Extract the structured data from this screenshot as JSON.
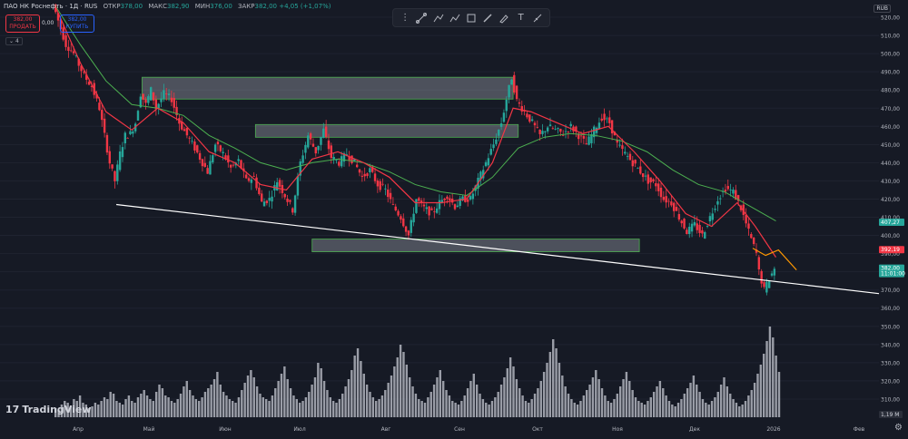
{
  "header": {
    "symbol": "ПАО НК Роснефть · 1Д · RUS",
    "open_label": "ОТКР",
    "open_value": "378,00",
    "high_label": "МАКС",
    "high_value": "382,90",
    "low_label": "МИН",
    "low_value": "376,00",
    "close_label": "ЗАКР",
    "close_value": "382,00",
    "change": "+4,05 (+1,07%)"
  },
  "trade": {
    "sell_price": "382,00",
    "sell_label": "ПРОДАТЬ",
    "spread": "0,00",
    "buy_price": "382,00",
    "buy_label": "КУПИТЬ",
    "indicator_count": "4"
  },
  "toolbar": {
    "icons": [
      "grip-icon",
      "trendline-icon",
      "fib-icon",
      "path-icon",
      "rectangle-icon",
      "brush-icon",
      "pen-icon",
      "text-icon",
      "measure-icon"
    ]
  },
  "currency": "RUB",
  "branding": {
    "logo_text": "TradingView"
  },
  "colors": {
    "bg": "#161a25",
    "up": "#26a69a",
    "down": "#f23645",
    "ema_fast": "#f23645",
    "ema_slow": "#4caf50",
    "zone_fill": "rgba(180,185,195,0.35)",
    "zone_border": "#4caf50",
    "trendline": "#ffffff",
    "projection": "#ff9800",
    "volume": "#b2b5be"
  },
  "chart_data": {
    "type": "candlestick",
    "title": "ПАО НК Роснефть · 1Д · RUS",
    "yaxis": {
      "min": 300,
      "max": 527,
      "ticks": [
        520,
        510,
        500,
        490,
        480,
        470,
        460,
        450,
        440,
        430,
        420,
        410,
        400,
        390,
        380,
        370,
        360,
        350,
        340,
        330,
        320,
        310
      ],
      "tick_labels": [
        "520,00",
        "510,00",
        "500,00",
        "490,00",
        "480,00",
        "470,00",
        "460,00",
        "450,00",
        "440,00",
        "430,00",
        "420,00",
        "410,00",
        "400,00",
        "390,00",
        "380,00",
        "370,00",
        "360,00",
        "350,00",
        "340,00",
        "330,00",
        "320,00",
        "310,00"
      ]
    },
    "xaxis": {
      "months": [
        "Апр",
        "Май",
        "Июн",
        "Июл",
        "Авг",
        "Сен",
        "Окт",
        "Ноя",
        "Дек",
        "2026",
        "Фев"
      ]
    },
    "price_labels": [
      {
        "value": 407.27,
        "text": "407,27",
        "color": "#26a69a"
      },
      {
        "value": 392.19,
        "text": "392,19",
        "color": "#f23645"
      },
      {
        "value": 382.0,
        "text": "382,00",
        "sub": "11:01:00",
        "color": "#26a69a"
      }
    ],
    "volume_label": "1,19 M",
    "price_path": [
      [
        0,
        527
      ],
      [
        5,
        505
      ],
      [
        8,
        500
      ],
      [
        12,
        488
      ],
      [
        15,
        482
      ],
      [
        18,
        470
      ],
      [
        20,
        455
      ],
      [
        22,
        440
      ],
      [
        24,
        430
      ],
      [
        26,
        445
      ],
      [
        28,
        455
      ],
      [
        30,
        456
      ],
      [
        32,
        462
      ],
      [
        34,
        478
      ],
      [
        36,
        472
      ],
      [
        38,
        480
      ],
      [
        40,
        470
      ],
      [
        43,
        478
      ],
      [
        46,
        475
      ],
      [
        49,
        462
      ],
      [
        52,
        455
      ],
      [
        55,
        448
      ],
      [
        58,
        440
      ],
      [
        60,
        435
      ],
      [
        63,
        450
      ],
      [
        66,
        445
      ],
      [
        69,
        437
      ],
      [
        72,
        441
      ],
      [
        75,
        430
      ],
      [
        78,
        432
      ],
      [
        81,
        418
      ],
      [
        84,
        420
      ],
      [
        87,
        430
      ],
      [
        90,
        422
      ],
      [
        93,
        414
      ],
      [
        96,
        440
      ],
      [
        99,
        455
      ],
      [
        102,
        446
      ],
      [
        105,
        458
      ],
      [
        108,
        443
      ],
      [
        111,
        440
      ],
      [
        114,
        445
      ],
      [
        117,
        440
      ],
      [
        120,
        432
      ],
      [
        123,
        436
      ],
      [
        126,
        428
      ],
      [
        129,
        425
      ],
      [
        132,
        416
      ],
      [
        135,
        410
      ],
      [
        138,
        400
      ],
      [
        141,
        420
      ],
      [
        144,
        415
      ],
      [
        147,
        412
      ],
      [
        150,
        418
      ],
      [
        153,
        422
      ],
      [
        156,
        416
      ],
      [
        159,
        420
      ],
      [
        162,
        420
      ],
      [
        165,
        430
      ],
      [
        168,
        440
      ],
      [
        171,
        450
      ],
      [
        174,
        462
      ],
      [
        176,
        475
      ],
      [
        178,
        487
      ],
      [
        180,
        474
      ],
      [
        183,
        468
      ],
      [
        186,
        462
      ],
      [
        189,
        455
      ],
      [
        192,
        460
      ],
      [
        195,
        458
      ],
      [
        198,
        456
      ],
      [
        201,
        460
      ],
      [
        204,
        455
      ],
      [
        207,
        450
      ],
      [
        210,
        458
      ],
      [
        213,
        465
      ],
      [
        216,
        462
      ],
      [
        219,
        450
      ],
      [
        222,
        445
      ],
      [
        225,
        440
      ],
      [
        228,
        435
      ],
      [
        231,
        430
      ],
      [
        234,
        428
      ],
      [
        237,
        420
      ],
      [
        240,
        418
      ],
      [
        243,
        410
      ],
      [
        246,
        402
      ],
      [
        249,
        406
      ],
      [
        252,
        400
      ],
      [
        255,
        410
      ],
      [
        258,
        420
      ],
      [
        261,
        426
      ],
      [
        264,
        424
      ],
      [
        267,
        415
      ],
      [
        270,
        402
      ],
      [
        273,
        390
      ],
      [
        274,
        380
      ],
      [
        276,
        370
      ],
      [
        278,
        376
      ],
      [
        280,
        382
      ]
    ],
    "ema_fast": [
      [
        0,
        527
      ],
      [
        10,
        495
      ],
      [
        20,
        468
      ],
      [
        30,
        458
      ],
      [
        40,
        470
      ],
      [
        50,
        462
      ],
      [
        60,
        446
      ],
      [
        70,
        440
      ],
      [
        80,
        428
      ],
      [
        90,
        425
      ],
      [
        100,
        442
      ],
      [
        110,
        446
      ],
      [
        120,
        440
      ],
      [
        130,
        432
      ],
      [
        140,
        418
      ],
      [
        150,
        418
      ],
      [
        160,
        420
      ],
      [
        170,
        440
      ],
      [
        178,
        470
      ],
      [
        185,
        468
      ],
      [
        195,
        462
      ],
      [
        205,
        456
      ],
      [
        215,
        460
      ],
      [
        225,
        446
      ],
      [
        235,
        430
      ],
      [
        245,
        412
      ],
      [
        255,
        405
      ],
      [
        265,
        418
      ],
      [
        272,
        405
      ],
      [
        280,
        388
      ]
    ],
    "ema_slow": [
      [
        0,
        527
      ],
      [
        10,
        505
      ],
      [
        20,
        485
      ],
      [
        30,
        472
      ],
      [
        40,
        470
      ],
      [
        50,
        466
      ],
      [
        60,
        455
      ],
      [
        70,
        448
      ],
      [
        80,
        440
      ],
      [
        90,
        436
      ],
      [
        100,
        440
      ],
      [
        110,
        442
      ],
      [
        120,
        440
      ],
      [
        130,
        435
      ],
      [
        140,
        428
      ],
      [
        150,
        424
      ],
      [
        160,
        422
      ],
      [
        170,
        432
      ],
      [
        180,
        448
      ],
      [
        190,
        454
      ],
      [
        200,
        456
      ],
      [
        210,
        455
      ],
      [
        220,
        452
      ],
      [
        230,
        446
      ],
      [
        240,
        436
      ],
      [
        250,
        428
      ],
      [
        260,
        424
      ],
      [
        270,
        416
      ],
      [
        280,
        408
      ]
    ],
    "zones": [
      {
        "x0": 34,
        "x1": 178,
        "y0": 475,
        "y1": 487
      },
      {
        "x0": 78,
        "x1": 180,
        "y0": 454,
        "y1": 461
      },
      {
        "x0": 100,
        "x1": 227,
        "y0": 391,
        "y1": 398
      }
    ],
    "trendline": [
      [
        24,
        417
      ],
      [
        320,
        368
      ]
    ],
    "projection": [
      [
        271,
        393
      ],
      [
        276,
        389
      ],
      [
        281,
        392
      ],
      [
        288,
        381
      ]
    ],
    "x_domain": [
      0,
      320
    ],
    "volume": [
      5,
      4,
      7,
      9,
      8,
      6,
      10,
      9,
      12,
      8,
      7,
      5,
      6,
      8,
      7,
      9,
      11,
      10,
      14,
      13,
      9,
      8,
      7,
      10,
      12,
      9,
      8,
      11,
      13,
      15,
      12,
      10,
      9,
      14,
      18,
      16,
      12,
      11,
      9,
      8,
      10,
      13,
      17,
      20,
      15,
      12,
      10,
      9,
      11,
      14,
      16,
      18,
      21,
      25,
      18,
      14,
      12,
      10,
      9,
      8,
      11,
      15,
      19,
      23,
      26,
      22,
      17,
      13,
      11,
      10,
      9,
      12,
      16,
      20,
      24,
      28,
      21,
      16,
      12,
      10,
      8,
      9,
      11,
      14,
      18,
      22,
      30,
      27,
      20,
      15,
      11,
      9,
      8,
      10,
      13,
      17,
      21,
      26,
      34,
      38,
      31,
      24,
      18,
      14,
      11,
      9,
      10,
      12,
      15,
      19,
      23,
      28,
      33,
      40,
      36,
      29,
      22,
      17,
      13,
      10,
      9,
      8,
      11,
      14,
      18,
      22,
      26,
      20,
      15,
      12,
      9,
      8,
      7,
      9,
      12,
      16,
      20,
      24,
      18,
      13,
      10,
      8,
      7,
      9,
      11,
      14,
      18,
      22,
      27,
      33,
      28,
      21,
      16,
      12,
      9,
      8,
      10,
      13,
      16,
      20,
      25,
      30,
      36,
      43,
      38,
      30,
      23,
      17,
      13,
      10,
      8,
      7,
      9,
      12,
      15,
      18,
      22,
      26,
      21,
      16,
      12,
      9,
      8,
      10,
      13,
      17,
      21,
      25,
      20,
      15,
      11,
      9,
      8,
      7,
      9,
      11,
      14,
      17,
      20,
      16,
      12,
      9,
      7,
      6,
      8,
      10,
      13,
      16,
      19,
      23,
      18,
      14,
      10,
      8,
      7,
      9,
      11,
      14,
      18,
      22,
      17,
      13,
      10,
      8,
      6,
      7,
      9,
      12,
      15,
      19,
      24,
      29,
      35,
      42,
      50,
      44,
      34,
      25
    ]
  }
}
